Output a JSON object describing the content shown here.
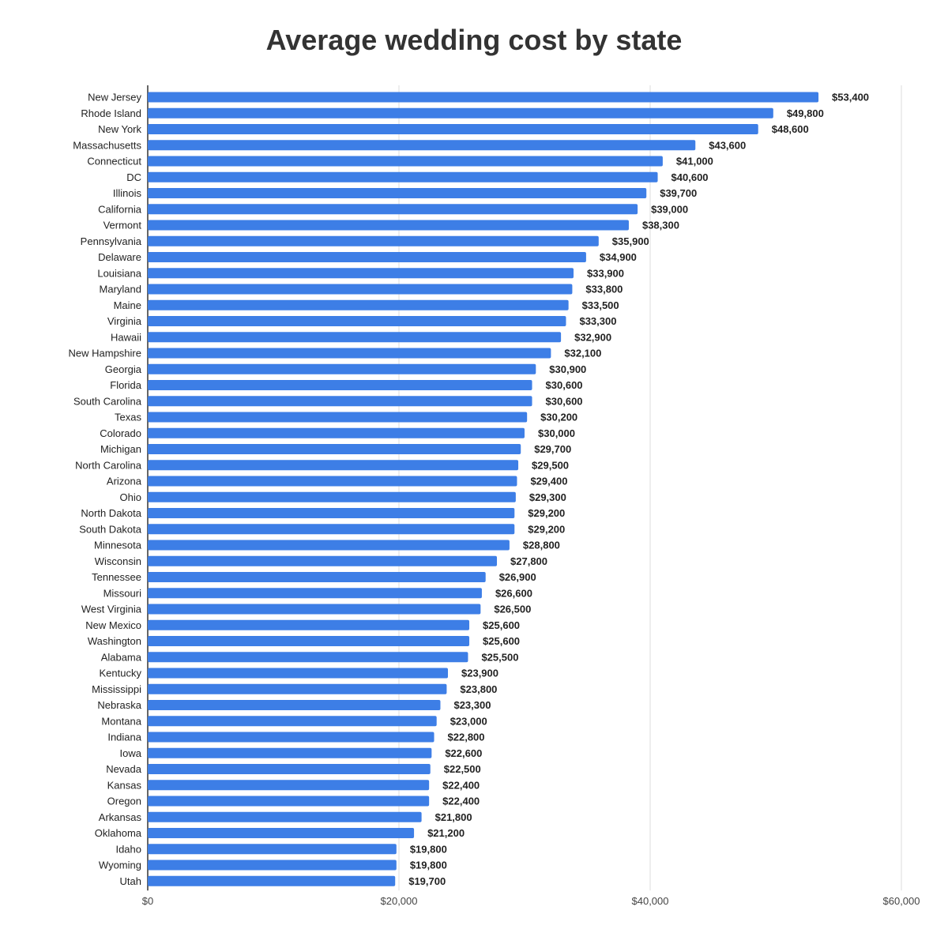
{
  "chart_data": {
    "type": "bar",
    "orientation": "horizontal",
    "title": "Average wedding cost by state",
    "categories": [
      "New Jersey",
      "Rhode Island",
      "New York",
      "Massachusetts",
      "Connecticut",
      "DC",
      "Illinois",
      "California",
      "Vermont",
      "Pennsylvania",
      "Delaware",
      "Louisiana",
      "Maryland",
      "Maine",
      "Virginia",
      "Hawaii",
      "New Hampshire",
      "Georgia",
      "Florida",
      "South Carolina",
      "Texas",
      "Colorado",
      "Michigan",
      "North Carolina",
      "Arizona",
      "Ohio",
      "North Dakota",
      "South Dakota",
      "Minnesota",
      "Wisconsin",
      "Tennessee",
      "Missouri",
      "West Virginia",
      "New Mexico",
      "Washington",
      "Alabama",
      "Kentucky",
      "Mississippi",
      "Nebraska",
      "Montana",
      "Indiana",
      "Iowa",
      "Nevada",
      "Kansas",
      "Oregon",
      "Arkansas",
      "Oklahoma",
      "Idaho",
      "Wyoming",
      "Utah"
    ],
    "values": [
      53400,
      49800,
      48600,
      43600,
      41000,
      40600,
      39700,
      39000,
      38300,
      35900,
      34900,
      33900,
      33800,
      33500,
      33300,
      32900,
      32100,
      30900,
      30600,
      30600,
      30200,
      30000,
      29700,
      29500,
      29400,
      29300,
      29200,
      29200,
      28800,
      27800,
      26900,
      26600,
      26500,
      25600,
      25600,
      25500,
      23900,
      23800,
      23300,
      23000,
      22800,
      22600,
      22500,
      22400,
      22400,
      21800,
      21200,
      19800,
      19800,
      19700
    ],
    "value_labels": [
      "$53,400",
      "$49,800",
      "$48,600",
      "$43,600",
      "$41,000",
      "$40,600",
      "$39,700",
      "$39,000",
      "$38,300",
      "$35,900",
      "$34,900",
      "$33,900",
      "$33,800",
      "$33,500",
      "$33,300",
      "$32,900",
      "$32,100",
      "$30,900",
      "$30,600",
      "$30,600",
      "$30,200",
      "$30,000",
      "$29,700",
      "$29,500",
      "$29,400",
      "$29,300",
      "$29,200",
      "$29,200",
      "$28,800",
      "$27,800",
      "$26,900",
      "$26,600",
      "$26,500",
      "$25,600",
      "$25,600",
      "$25,500",
      "$23,900",
      "$23,800",
      "$23,300",
      "$23,000",
      "$22,800",
      "$22,600",
      "$22,500",
      "$22,400",
      "$22,400",
      "$21,800",
      "$21,200",
      "$19,800",
      "$19,800",
      "$19,700"
    ],
    "xlim": [
      0,
      60000
    ],
    "xticks": [
      0,
      20000,
      40000,
      60000
    ],
    "xtick_labels": [
      "$0",
      "$20,000",
      "$40,000",
      "$60,000"
    ],
    "grid": true,
    "bar_color": "#3d7ee6",
    "grid_color": "#dddddd"
  }
}
